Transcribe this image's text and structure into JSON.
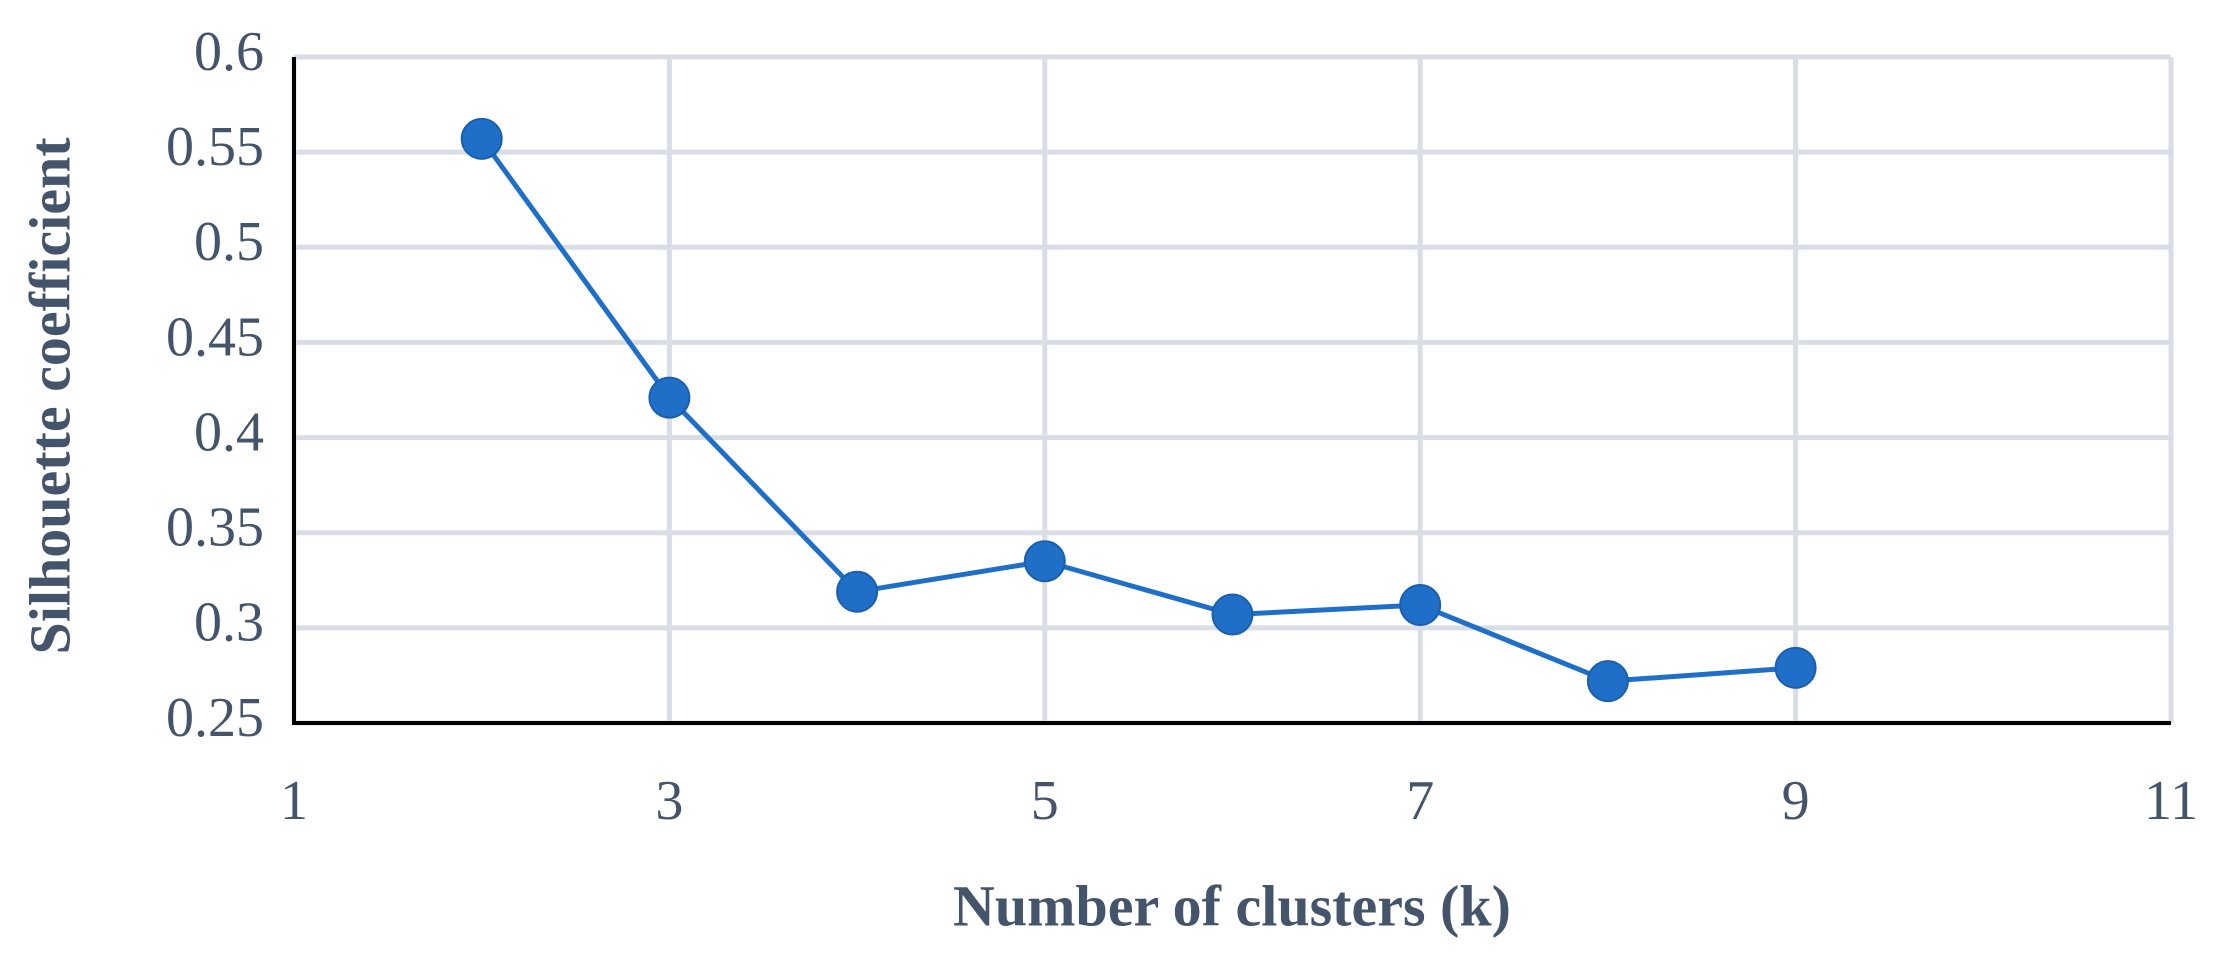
{
  "chart_data": {
    "type": "line",
    "x_label": "Number of clusters (k)",
    "y_label": "Silhouette coefficient",
    "x": [
      2,
      3,
      4,
      5,
      6,
      7,
      8,
      9
    ],
    "series": [
      {
        "name": "Silhouette coefficient",
        "color": "#1f6fc9",
        "values": [
          0.557,
          0.421,
          0.319,
          0.335,
          0.307,
          0.312,
          0.272,
          0.279
        ]
      }
    ],
    "xlim": [
      1,
      11
    ],
    "xticks": [
      1,
      3,
      5,
      7,
      9,
      11
    ],
    "ylim": [
      0.25,
      0.6
    ],
    "yticks": [
      0.25,
      0.3,
      0.35,
      0.4,
      0.45,
      0.5,
      0.55,
      0.6
    ],
    "grid": true
  }
}
